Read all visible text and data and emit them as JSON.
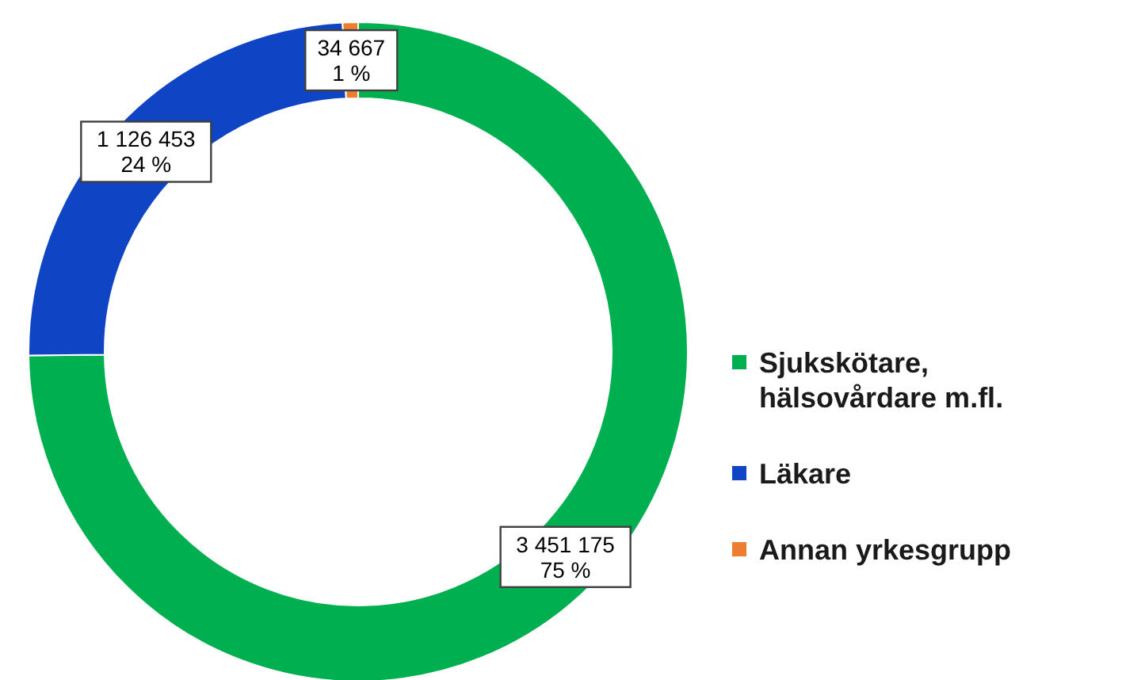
{
  "chart_data": {
    "type": "donut",
    "categories": [
      "Sjukskötare,\nhälsovårdare m.fl.",
      "Läkare",
      "Annan yrkesgrupp"
    ],
    "values": [
      3451175,
      1126453,
      34667
    ],
    "colors": [
      "#00b050",
      "#0f45c4",
      "#ed7d31"
    ],
    "value_labels": [
      "3 451 175\n75 %",
      "1 126 453\n24 %",
      "34 667\n1 %"
    ],
    "legend": "right"
  }
}
